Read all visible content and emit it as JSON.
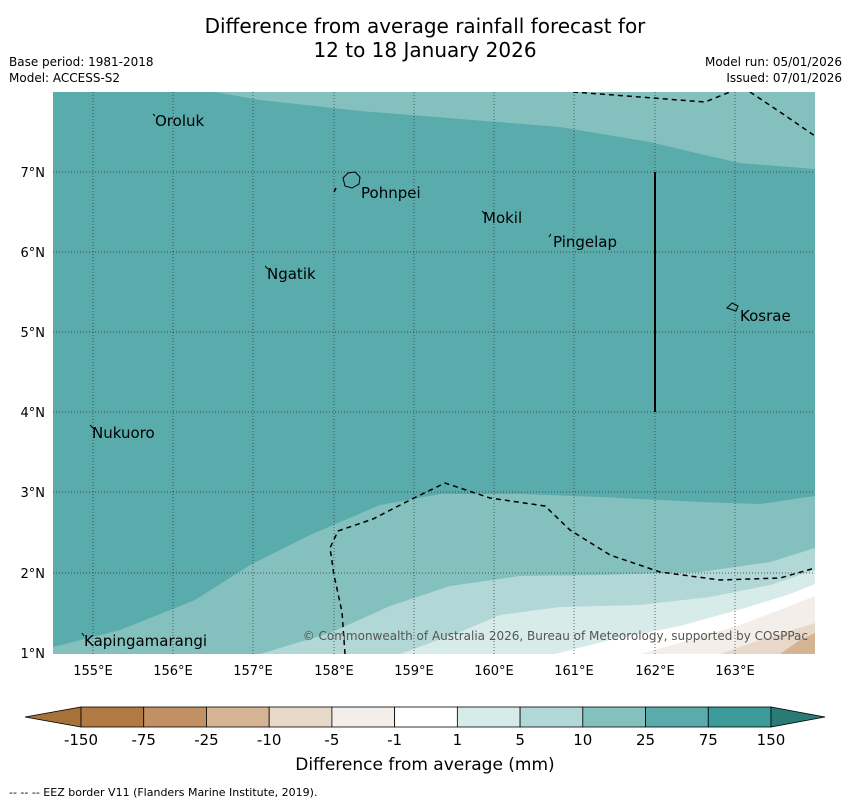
{
  "title": {
    "line1": "Difference from average rainfall forecast for",
    "line2": "12 to 18 January 2026"
  },
  "meta": {
    "base_period": "Base period: 1981-2018",
    "model": "Model: ACCESS-S2",
    "model_run": "Model run: 05/01/2026",
    "issued": "Issued: 07/01/2026"
  },
  "axes": {
    "lon_labels": [
      "155°E",
      "156°E",
      "157°E",
      "158°E",
      "159°E",
      "160°E",
      "161°E",
      "162°E",
      "163°E"
    ],
    "lat_labels": [
      "7°N",
      "6°N",
      "5°N",
      "4°N",
      "3°N",
      "2°N",
      "1°N"
    ]
  },
  "places": [
    "Oroluk",
    "Pohnpei",
    "Mokil",
    "Pingelap",
    "Ngatik",
    "Kosrae",
    "Nukuoro",
    "Kapingamarangi"
  ],
  "copyright": "© Commonwealth of Australia 2026, Bureau of Meteorology, supported by COSPPac",
  "colorbar": {
    "labels": [
      "-150",
      "-75",
      "-25",
      "-10",
      "-5",
      "-1",
      "1",
      "5",
      "10",
      "25",
      "75",
      "150"
    ],
    "colors": [
      "#a6723a",
      "#b17a45",
      "#c19063",
      "#d5b493",
      "#e8d8c9",
      "#f3eee9",
      "#ffffff",
      "#d7ebe9",
      "#b1d7d6",
      "#84c0be",
      "#5aabab",
      "#3a9b9a",
      "#2a7b76"
    ],
    "title": "Difference from average (mm)"
  },
  "footer": "--  --  -- EEZ border V11 (Flanders Marine Institute, 2019)."
}
